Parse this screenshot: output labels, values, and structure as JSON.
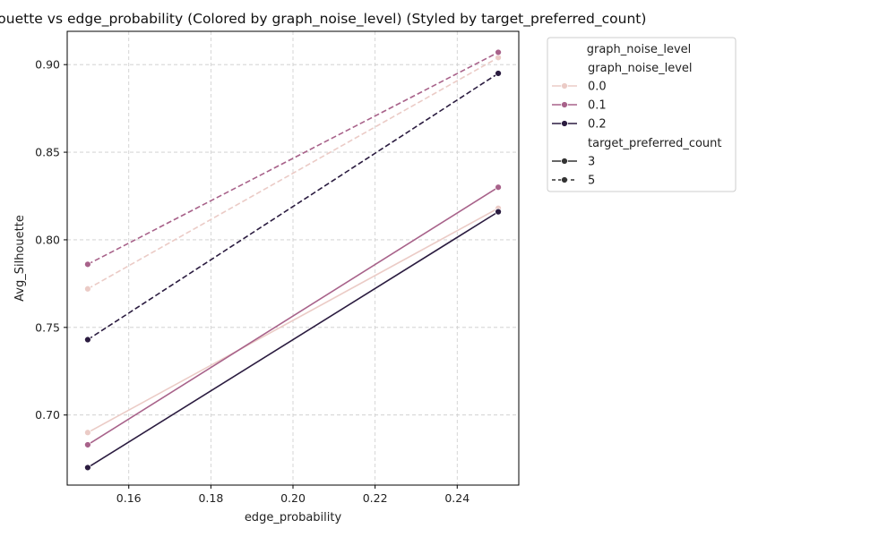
{
  "chart_data": {
    "type": "line",
    "title": "Avg_Silhouette vs edge_probability (Colored by graph_noise_level) (Styled by target_preferred_count)",
    "xlabel": "edge_probability",
    "ylabel": "Avg_Silhouette",
    "xlim": [
      0.145,
      0.255
    ],
    "ylim": [
      0.66,
      0.919
    ],
    "xticks": [
      0.16,
      0.18,
      0.2,
      0.22,
      0.24
    ],
    "xtick_labels": [
      "0.16",
      "0.18",
      "0.20",
      "0.22",
      "0.24"
    ],
    "yticks": [
      0.7,
      0.75,
      0.8,
      0.85,
      0.9
    ],
    "ytick_labels": [
      "0.70",
      "0.75",
      "0.80",
      "0.85",
      "0.90"
    ],
    "grid": true,
    "legend": {
      "placement": "outside-top-right",
      "title": "graph_noise_level",
      "hue_title": "graph_noise_level",
      "hue_entries": [
        {
          "label": "0.0",
          "color": "#ebcbc6"
        },
        {
          "label": "0.1",
          "color": "#a8628a"
        },
        {
          "label": "0.2",
          "color": "#2b1c40"
        }
      ],
      "style_title": "target_preferred_count",
      "style_entries": [
        {
          "label": "3",
          "dash": "solid"
        },
        {
          "label": "5",
          "dash": "dashed"
        }
      ]
    },
    "x": [
      0.15,
      0.25
    ],
    "series": [
      {
        "name": "0.0",
        "style": "3",
        "color": "#ebcbc6",
        "dash": "solid",
        "values": [
          0.69,
          0.818
        ]
      },
      {
        "name": "0.1",
        "style": "3",
        "color": "#a8628a",
        "dash": "solid",
        "values": [
          0.683,
          0.83
        ]
      },
      {
        "name": "0.2",
        "style": "3",
        "color": "#2b1c40",
        "dash": "solid",
        "values": [
          0.67,
          0.816
        ]
      },
      {
        "name": "0.0",
        "style": "5",
        "color": "#ebcbc6",
        "dash": "dashed",
        "values": [
          0.772,
          0.904
        ]
      },
      {
        "name": "0.1",
        "style": "5",
        "color": "#a8628a",
        "dash": "dashed",
        "values": [
          0.786,
          0.907
        ]
      },
      {
        "name": "0.2",
        "style": "5",
        "color": "#2b1c40",
        "dash": "dashed",
        "values": [
          0.743,
          0.895
        ]
      }
    ]
  }
}
